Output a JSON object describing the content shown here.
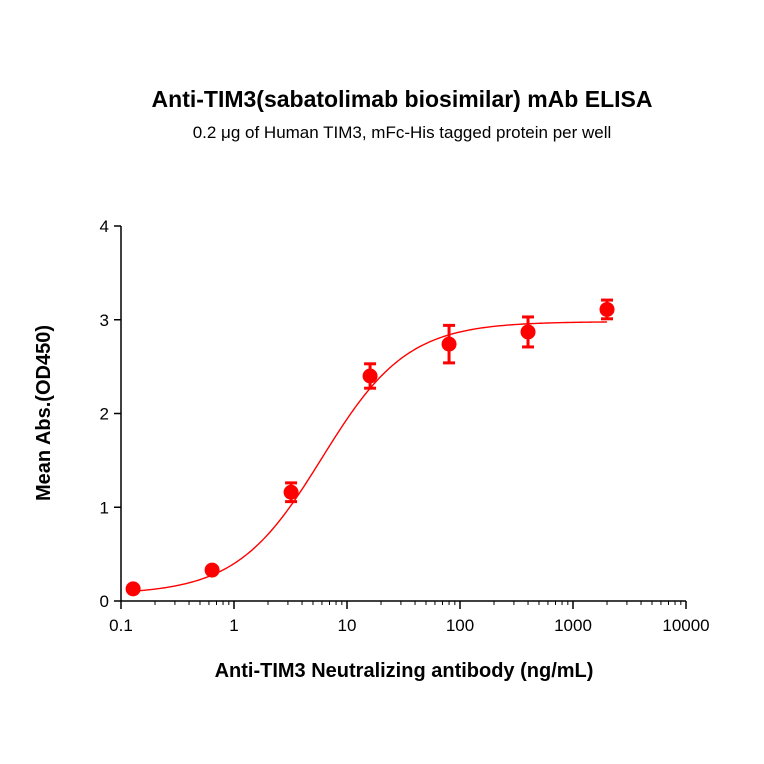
{
  "chart_data": {
    "type": "scatter",
    "title": "Anti-TIM3(sabatolimab biosimilar) mAb ELISA",
    "subtitle": "0.2 μg of Human TIM3, mFc-His tagged protein per well",
    "xlabel": "Anti-TIM3 Neutralizing antibody (ng/mL)",
    "ylabel": "Mean Abs.(OD450)",
    "xscale": "log",
    "xlim": [
      0.1,
      10000
    ],
    "ylim": [
      0,
      4
    ],
    "x_ticks": [
      0.1,
      1,
      10,
      100,
      1000,
      10000
    ],
    "x_tick_labels": [
      "0.1",
      "1",
      "10",
      "100",
      "1000",
      "10000"
    ],
    "y_ticks": [
      0,
      1,
      2,
      3,
      4
    ],
    "y_tick_labels": [
      "0",
      "1",
      "2",
      "3",
      "4"
    ],
    "grid": false,
    "series": [
      {
        "x": [
          0.128,
          0.64,
          3.2,
          16,
          80,
          400,
          2000
        ],
        "y": [
          0.13,
          0.33,
          1.16,
          2.4,
          2.74,
          2.87,
          3.11
        ],
        "error": [
          0.02,
          0.02,
          0.1,
          0.13,
          0.2,
          0.16,
          0.1
        ],
        "color": "#ff0000",
        "marker": "circle"
      }
    ],
    "fit": {
      "type": "4PL",
      "bottom": 0.07,
      "top": 2.98,
      "ec50": 6.0,
      "hill": 1.15,
      "color": "#ff0000"
    }
  }
}
